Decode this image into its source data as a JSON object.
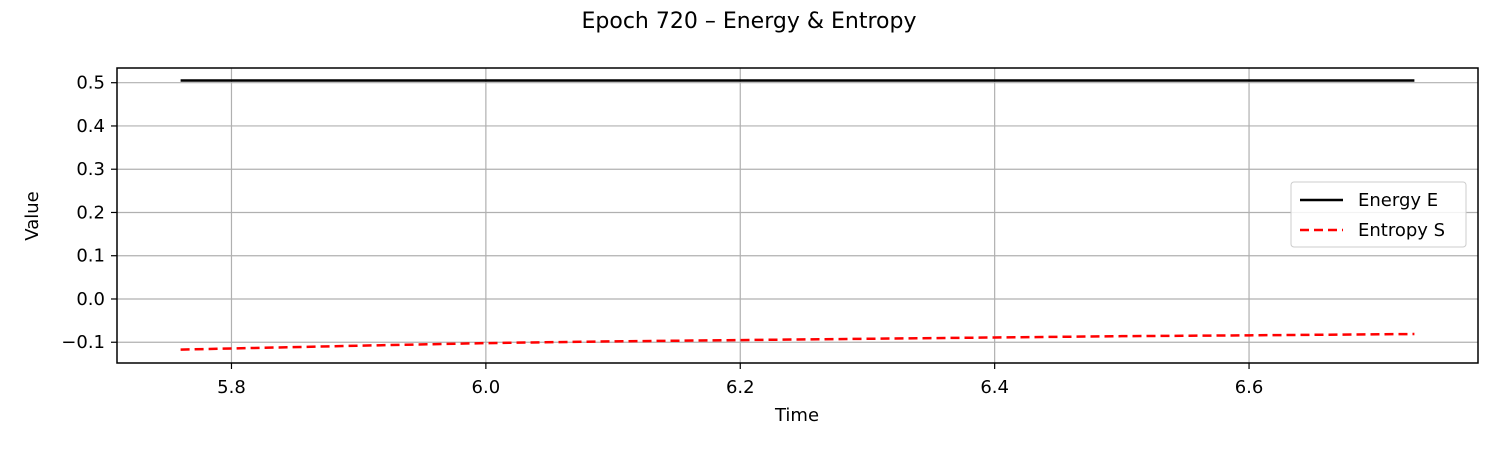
{
  "chart_data": {
    "type": "line",
    "title": "Epoch 720 – Energy & Entropy",
    "xlabel": "Time",
    "ylabel": "Value",
    "xlim": [
      5.71,
      6.78
    ],
    "ylim": [
      -0.148,
      0.534
    ],
    "xticks": [
      {
        "value": 5.8,
        "label": "5.8"
      },
      {
        "value": 6.0,
        "label": "6.0"
      },
      {
        "value": 6.2,
        "label": "6.2"
      },
      {
        "value": 6.4,
        "label": "6.4"
      },
      {
        "value": 6.6,
        "label": "6.6"
      }
    ],
    "yticks": [
      {
        "value": 0.5,
        "label": "0.5"
      },
      {
        "value": 0.4,
        "label": "0.4"
      },
      {
        "value": 0.3,
        "label": "0.3"
      },
      {
        "value": 0.2,
        "label": "0.2"
      },
      {
        "value": 0.1,
        "label": "0.1"
      },
      {
        "value": 0.0,
        "label": "0.0"
      },
      {
        "value": -0.1,
        "label": "−0.1"
      }
    ],
    "grid": true,
    "legend_position": "center-right",
    "series": [
      {
        "name": "Energy E",
        "color": "#000000",
        "style": "solid",
        "x": [
          5.76,
          6.0,
          6.2,
          6.4,
          6.6,
          6.73
        ],
        "y": [
          0.505,
          0.505,
          0.505,
          0.505,
          0.505,
          0.505
        ]
      },
      {
        "name": "Entropy S",
        "color": "#ff0000",
        "style": "dashed",
        "x": [
          5.76,
          5.9,
          6.0,
          6.1,
          6.2,
          6.3,
          6.4,
          6.5,
          6.6,
          6.73
        ],
        "y": [
          -0.117,
          -0.108,
          -0.102,
          -0.098,
          -0.095,
          -0.092,
          -0.089,
          -0.086,
          -0.084,
          -0.081
        ]
      }
    ]
  }
}
